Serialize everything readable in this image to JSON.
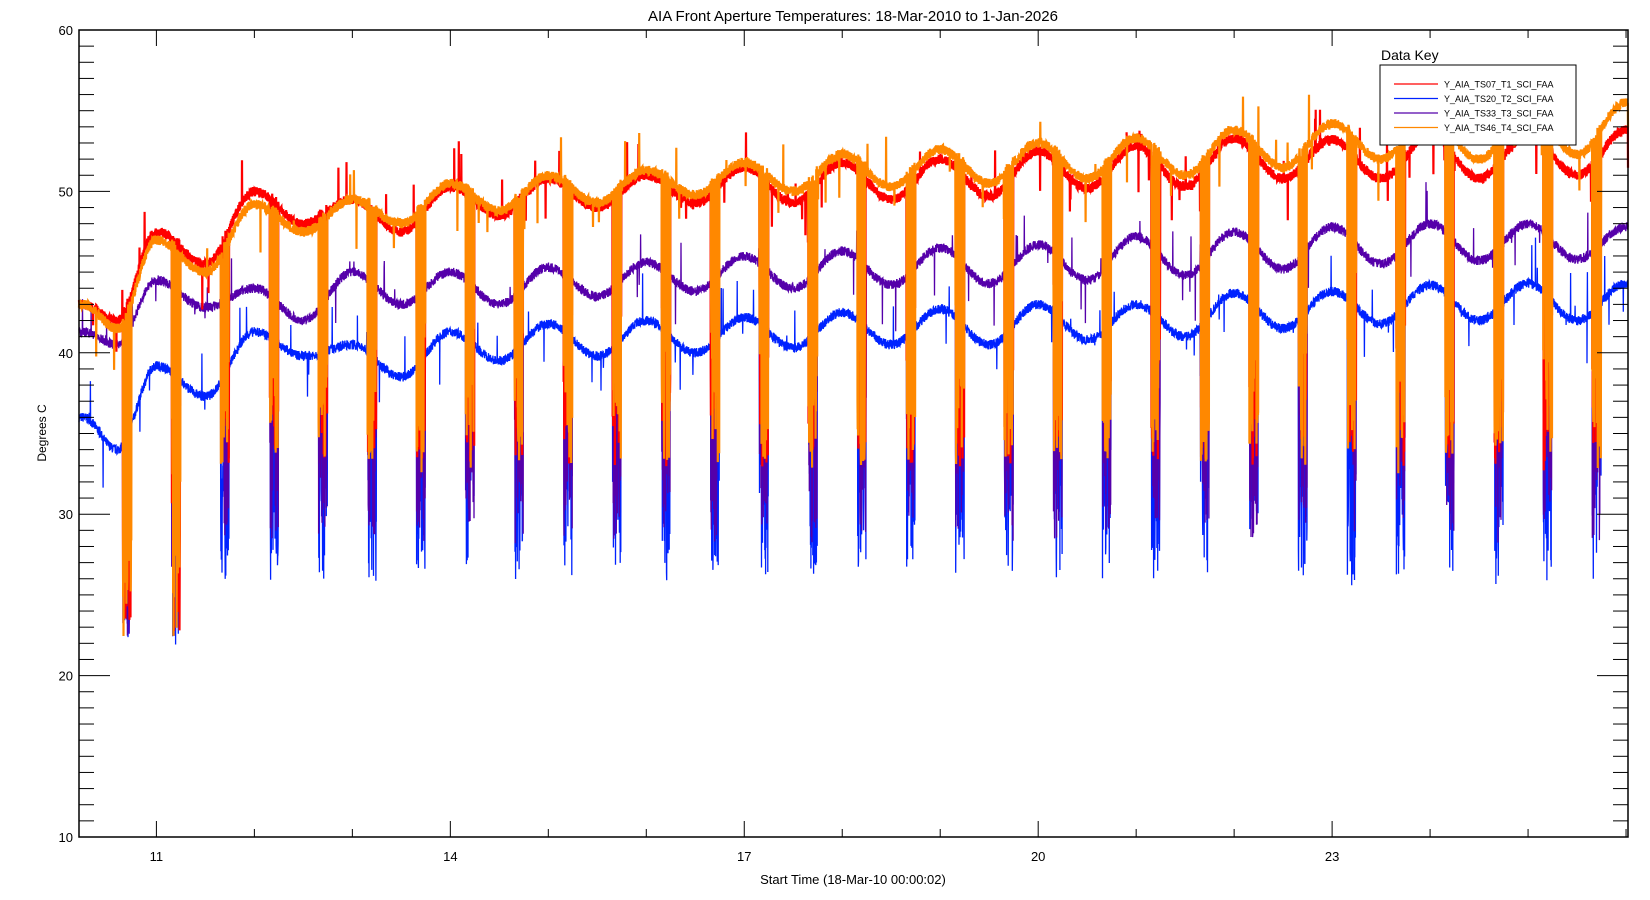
{
  "chart_data": {
    "type": "line",
    "title": "AIA Front Aperture Temperatures: 18-Mar-2010 to 1-Jan-2026",
    "xlabel": "Start Time (18-Mar-10 00:00:02)",
    "ylabel": "Degrees C",
    "xlim": [
      10.21,
      26.02
    ],
    "ylim": [
      10,
      60
    ],
    "x_tick_labels": [
      "11",
      "14",
      "17",
      "20",
      "23"
    ],
    "x_tick_values": [
      11,
      14,
      17,
      20,
      23
    ],
    "y_tick_labels": [
      "10",
      "20",
      "30",
      "40",
      "50",
      "60"
    ],
    "y_tick_values": [
      10,
      20,
      30,
      40,
      50,
      60
    ],
    "grid": false,
    "legend": {
      "title": "Data Key",
      "placement": "top-right"
    },
    "x": [
      10.25,
      10.6,
      11,
      11.5,
      12,
      12.5,
      13,
      13.5,
      14,
      14.5,
      15,
      15.5,
      16,
      16.5,
      17,
      17.5,
      18,
      18.5,
      19,
      19.5,
      20,
      20.5,
      21,
      21.5,
      22,
      22.5,
      23,
      23.5,
      24,
      24.5,
      25,
      25.5,
      26
    ],
    "series": [
      {
        "name": "Y_AIA_TS07_T1_SCI_FAA",
        "color": "#ff0000",
        "values": [
          43,
          42,
          47.5,
          45.5,
          50,
          48,
          49.5,
          47.5,
          50.3,
          48.5,
          50.8,
          49,
          51,
          49.3,
          51.5,
          49.3,
          51.8,
          49.5,
          52,
          49.7,
          52.5,
          50.2,
          52.8,
          50.3,
          53.3,
          50.8,
          53.2,
          50.8,
          53.5,
          50.8,
          53.5,
          51,
          53.8
        ],
        "eclipse_min": 33
      },
      {
        "name": "Y_AIA_TS20_T2_SCI_FAA",
        "color": "#0022ff",
        "values": [
          36,
          34,
          39.2,
          37.3,
          41.3,
          39.8,
          40.5,
          38.5,
          41.3,
          39.5,
          41.8,
          39.8,
          42,
          40,
          42.2,
          40.3,
          42.5,
          40.5,
          42.7,
          40.5,
          43,
          40.8,
          43,
          41,
          43.7,
          41.5,
          43.8,
          41.8,
          44.2,
          42,
          44.3,
          42,
          44.3
        ],
        "eclipse_min": 26
      },
      {
        "name": "Y_AIA_TS33_T3_SCI_FAA",
        "color": "#5500aa",
        "values": [
          41.3,
          40.5,
          44.5,
          42.8,
          44,
          42,
          45,
          43,
          45,
          43,
          45.3,
          43.5,
          45.6,
          43.8,
          46,
          44,
          46.3,
          44.2,
          46.5,
          44.3,
          46.7,
          44.5,
          47.2,
          44.8,
          47.5,
          45.2,
          47.8,
          45.5,
          48,
          45.7,
          48,
          45.8,
          47.8
        ],
        "eclipse_min": 28.5
      },
      {
        "name": "Y_AIA_TS46_T4_SCI_FAA",
        "color": "#ff8800",
        "values": [
          43,
          41.5,
          47,
          45,
          49.2,
          47.5,
          49.5,
          48,
          50.5,
          48.8,
          51,
          49.3,
          51.3,
          49.8,
          51.8,
          50,
          52.3,
          50.3,
          52.6,
          50.5,
          53,
          50.8,
          53.3,
          51,
          53.8,
          51.5,
          54.2,
          52,
          54.5,
          52,
          55,
          52.3,
          55.5
        ],
        "eclipse_min": 33
      }
    ],
    "eclipse_times": [
      10.7,
      11.2,
      11.7,
      12.2,
      12.7,
      13.2,
      13.7,
      14.2,
      14.7,
      15.2,
      15.7,
      16.2,
      16.7,
      17.2,
      17.7,
      18.2,
      18.7,
      19.2,
      19.7,
      20.2,
      20.7,
      21.2,
      21.7,
      22.2,
      22.7,
      23.2,
      23.7,
      24.2,
      24.7,
      25.2,
      25.7
    ]
  }
}
